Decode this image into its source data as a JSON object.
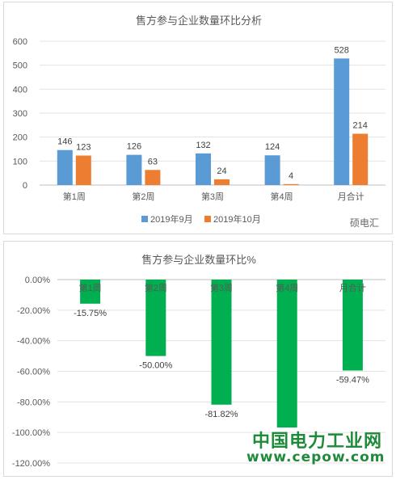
{
  "chart_data": [
    {
      "type": "bar",
      "title": "售方参与企业数量环比分析",
      "categories": [
        "第1周",
        "第2周",
        "第3周",
        "第4周",
        "月合计"
      ],
      "series": [
        {
          "name": "2019年9月",
          "values": [
            146,
            126,
            132,
            124,
            528
          ],
          "color": "#5b9bd5"
        },
        {
          "name": "2019年10月",
          "values": [
            123,
            63,
            24,
            4,
            214
          ],
          "color": "#ed7d31"
        }
      ],
      "ylim": [
        0,
        600
      ],
      "yticks": [
        0,
        100,
        200,
        300,
        400,
        500,
        600
      ],
      "grid": true,
      "legend": "bottom"
    },
    {
      "type": "bar",
      "title": "售方参与企业数量环比%",
      "categories": [
        "第1周",
        "第2周",
        "第3周",
        "第4周",
        "月合计"
      ],
      "series": [
        {
          "values": [
            -15.75,
            -50.0,
            -81.82,
            -96.77,
            -59.47
          ],
          "color": "#00b050"
        }
      ],
      "data_labels": [
        "-15.75%",
        "-50.00%",
        "-81.82%",
        "",
        "-59.47%"
      ],
      "ylim": [
        -120,
        0
      ],
      "yticks": [
        0,
        -20,
        -40,
        -60,
        -80,
        -100,
        -120
      ],
      "ytick_labels": [
        "0.00%",
        "-20.00%",
        "-40.00%",
        "-60.00%",
        "-80.00%",
        "-100.00%",
        "-120.00%"
      ],
      "grid": true
    }
  ],
  "watermark": {
    "line1": "中国电力工业网",
    "line2": "www.cepow.com",
    "logo_text": "硕电汇"
  }
}
